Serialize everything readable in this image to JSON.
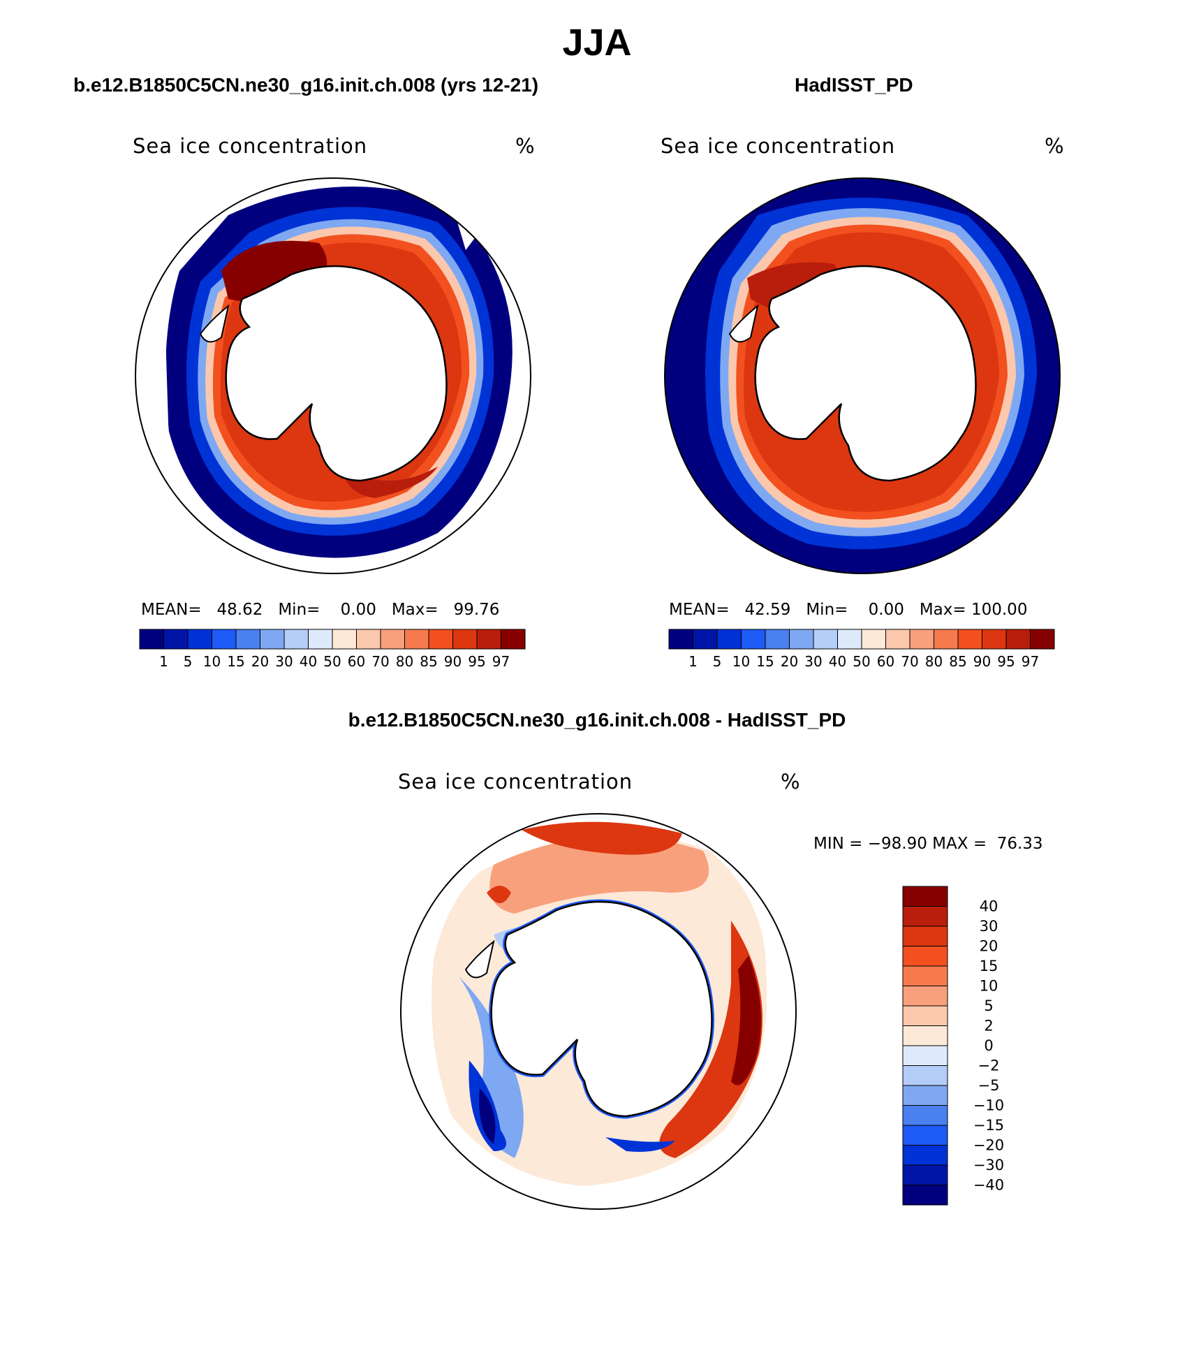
{
  "figure": {
    "title": "JJA"
  },
  "panels": [
    {
      "title": "b.e12.B1850C5CN.ne30_g16.init.ch.008 (yrs 12-21)",
      "variable": "Sea ice concentration",
      "units": "%",
      "stats": {
        "mean_label": "MEAN=",
        "mean": "48.62",
        "min_label": "Min=",
        "min": "0.00",
        "max_label": "Max=",
        "max": "99.76"
      }
    },
    {
      "title": "HadISST_PD",
      "variable": "Sea ice concentration",
      "units": "%",
      "stats": {
        "mean_label": "MEAN=",
        "mean": "42.59",
        "min_label": "Min=",
        "min": "0.00",
        "max_label": "Max=",
        "max": "100.00"
      }
    }
  ],
  "abs_colorbar": {
    "levels": [
      "1",
      "5",
      "10",
      "15",
      "20",
      "30",
      "40",
      "50",
      "60",
      "70",
      "80",
      "85",
      "90",
      "95",
      "97"
    ],
    "colors": [
      "#00007f",
      "#0015a8",
      "#0033d6",
      "#1e5af5",
      "#4a80f0",
      "#7fa8f2",
      "#b3cdf7",
      "#deeafb",
      "#fde9d8",
      "#fbc8ad",
      "#f8a07c",
      "#f77a4e",
      "#f2501f",
      "#dc3711",
      "#b91d0b",
      "#870000"
    ]
  },
  "diff_panel": {
    "title": "b.e12.B1850C5CN.ne30_g16.init.ch.008 - HadISST_PD",
    "variable": "Sea ice concentration",
    "units": "%",
    "stats": {
      "min_label": "MIN =",
      "min": "−98.90",
      "max_label": "MAX =",
      "max": "76.33"
    }
  },
  "diff_colorbar": {
    "levels": [
      "40",
      "30",
      "20",
      "15",
      "10",
      "5",
      "2",
      "0",
      "−2",
      "−5",
      "−10",
      "−15",
      "−20",
      "−30",
      "−40"
    ],
    "colors": [
      "#870000",
      "#b91d0b",
      "#dc3711",
      "#f2501f",
      "#f77a4e",
      "#f8a07c",
      "#fbc8ad",
      "#fde9d8",
      "#deeafb",
      "#b3cdf7",
      "#7fa8f2",
      "#4a80f0",
      "#1e5af5",
      "#0033d6",
      "#0015a8",
      "#00007f"
    ]
  }
}
